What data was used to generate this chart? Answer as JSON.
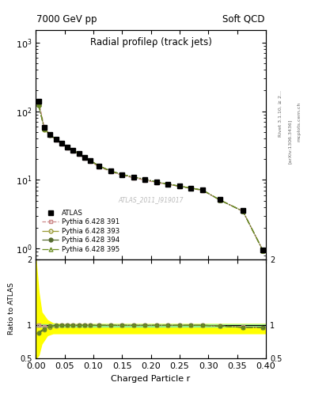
{
  "title": "Radial profileρ (track jets)",
  "top_left_label": "7000 GeV pp",
  "top_right_label": "Soft QCD",
  "watermark": "ATLAS_2011_I919017",
  "xlabel": "Charged Particle r",
  "ylabel_ratio": "Ratio to ATLAS",
  "right_label_1": "Rivet 3.1.10, ≥ 2...",
  "right_label_2": "[arXiv:1306.3436]",
  "right_label_3": "mcplots.cern.ch",
  "x_data": [
    0.005,
    0.015,
    0.025,
    0.035,
    0.045,
    0.055,
    0.065,
    0.075,
    0.085,
    0.095,
    0.11,
    0.13,
    0.15,
    0.17,
    0.19,
    0.21,
    0.23,
    0.25,
    0.27,
    0.29,
    0.32,
    0.36,
    0.395
  ],
  "atlas_y": [
    140,
    58,
    46,
    39,
    34,
    30,
    27,
    24,
    21,
    19,
    16,
    13.5,
    12,
    11,
    10.2,
    9.3,
    8.7,
    8.1,
    7.6,
    7.1,
    5.2,
    3.6,
    0.95
  ],
  "py391_y": [
    140,
    57,
    45.5,
    38.5,
    33.5,
    29.5,
    26.5,
    23.5,
    20.5,
    18.5,
    15.5,
    13.2,
    11.7,
    10.7,
    9.9,
    9.1,
    8.6,
    8.0,
    7.5,
    7.0,
    5.1,
    3.5,
    0.93
  ],
  "py393_y": [
    123,
    54,
    44.6,
    38.6,
    34.0,
    30.0,
    27.0,
    24.0,
    21.0,
    19.0,
    16.0,
    13.5,
    12.0,
    11.0,
    10.2,
    9.3,
    8.7,
    8.1,
    7.6,
    7.1,
    5.1,
    3.5,
    0.93
  ],
  "py394_y": [
    123,
    55,
    45.5,
    39.0,
    34.0,
    30.0,
    27.0,
    24.0,
    21.0,
    19.0,
    16.0,
    13.5,
    12.0,
    11.0,
    10.2,
    9.3,
    8.7,
    8.1,
    7.6,
    7.1,
    5.1,
    3.5,
    0.93
  ],
  "py395_y": [
    126,
    55,
    45.5,
    39.0,
    34.0,
    30.0,
    27.0,
    24.0,
    21.0,
    19.0,
    16.0,
    13.5,
    12.0,
    11.0,
    10.2,
    9.3,
    8.7,
    8.1,
    7.6,
    7.1,
    5.1,
    3.5,
    0.93
  ],
  "ratio_391": [
    1.0,
    0.98,
    0.99,
    0.99,
    1.0,
    1.0,
    1.0,
    1.0,
    1.0,
    1.0,
    1.0,
    1.0,
    1.0,
    1.0,
    1.0,
    1.0,
    1.0,
    1.0,
    1.0,
    1.0,
    0.99,
    0.98,
    0.97
  ],
  "ratio_393": [
    0.88,
    0.93,
    0.97,
    0.99,
    1.0,
    1.0,
    1.0,
    1.0,
    1.0,
    1.0,
    1.0,
    1.0,
    1.0,
    1.0,
    1.0,
    1.0,
    1.0,
    1.0,
    1.0,
    1.0,
    0.99,
    0.97,
    0.97
  ],
  "ratio_394": [
    0.88,
    0.95,
    0.99,
    1.0,
    1.0,
    1.0,
    1.0,
    1.0,
    1.0,
    1.0,
    1.0,
    1.0,
    1.0,
    1.0,
    1.0,
    1.0,
    1.0,
    1.0,
    1.0,
    1.0,
    0.99,
    0.97,
    0.97
  ],
  "ratio_395": [
    0.9,
    0.95,
    0.99,
    1.0,
    1.0,
    1.0,
    1.0,
    1.0,
    1.0,
    1.0,
    1.0,
    1.0,
    1.0,
    1.0,
    1.0,
    1.0,
    1.0,
    1.0,
    1.0,
    1.0,
    0.99,
    0.97,
    0.97
  ],
  "green_band_upper": 1.02,
  "green_band_lower": 0.975,
  "yellow_band_x": [
    0.0,
    0.005,
    0.01,
    0.02,
    0.03,
    0.05,
    0.4
  ],
  "yellow_band_upper": [
    2.0,
    1.5,
    1.2,
    1.08,
    1.03,
    1.02,
    1.02
  ],
  "yellow_band_lower": [
    0.5,
    0.55,
    0.72,
    0.85,
    0.88,
    0.88,
    0.88
  ],
  "ylim_main": [
    0.7,
    1500
  ],
  "ylim_ratio": [
    0.5,
    2.0
  ],
  "xlim": [
    0.0,
    0.4
  ],
  "yticks_ratio": [
    0.5,
    1.0,
    2.0
  ],
  "ytick_labels_ratio": [
    "0.5",
    "1",
    "2"
  ]
}
